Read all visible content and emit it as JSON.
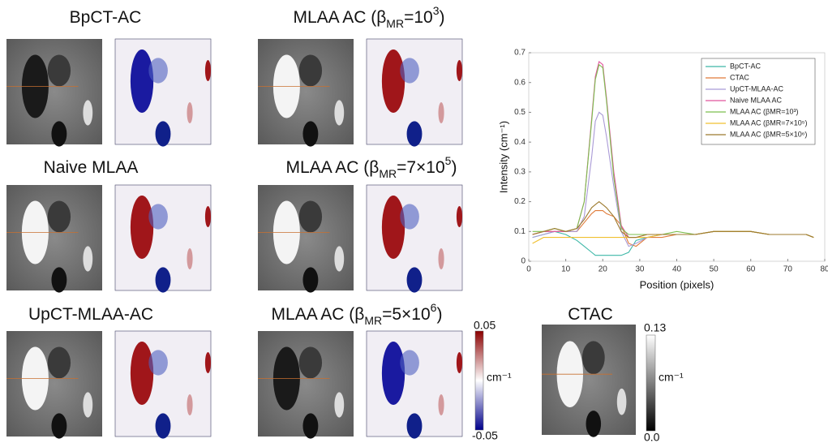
{
  "panels": [
    {
      "title": [
        "BpCT-AC"
      ]
    },
    {
      "title": [
        "MLAA AC (β",
        "MR",
        "=10",
        "3",
        ")"
      ]
    },
    {
      "title": [
        "Naive MLAA"
      ]
    },
    {
      "title": [
        "MLAA AC (β",
        "MR",
        "=7×10",
        "5",
        ")"
      ]
    },
    {
      "title": [
        "UpCT-MLAA-AC"
      ]
    },
    {
      "title": [
        "MLAA AC (β",
        "MR",
        "=5×10",
        "6",
        ")"
      ]
    },
    {
      "title": [
        "CTAC"
      ]
    }
  ],
  "colorbars": [
    {
      "max": "0.05",
      "unit": "cm⁻¹",
      "min": "-0.05"
    },
    {
      "max": "0.13",
      "unit": "cm⁻¹",
      "min": "0.0"
    }
  ],
  "chart_data": {
    "type": "line",
    "x_label": "Position (pixels)",
    "y_label": "Intensity (cm⁻¹)",
    "xlim": [
      0,
      80
    ],
    "xticks": [
      0,
      10,
      20,
      30,
      40,
      50,
      60,
      70,
      80
    ],
    "ylim": [
      0,
      0.7
    ],
    "yticks": [
      0,
      0.1,
      0.2,
      0.3,
      0.4,
      0.5,
      0.6,
      0.7
    ],
    "legend": "upper right",
    "x": [
      1,
      4,
      7,
      10,
      13,
      15,
      17,
      18,
      19,
      20,
      21,
      23,
      25,
      27,
      29,
      32,
      36,
      40,
      45,
      50,
      55,
      60,
      65,
      70,
      75,
      77
    ],
    "series": [
      {
        "name": "BpCT-AC",
        "color": "#3fb8a8",
        "values": [
          0.08,
          0.09,
          0.1,
          0.09,
          0.07,
          0.05,
          0.03,
          0.02,
          0.02,
          0.02,
          0.02,
          0.02,
          0.02,
          0.03,
          0.07,
          0.08,
          0.09,
          0.09,
          0.09,
          0.1,
          0.1,
          0.1,
          0.09,
          0.09,
          0.09,
          0.08
        ]
      },
      {
        "name": "CTAC",
        "color": "#e07b39",
        "values": [
          0.09,
          0.1,
          0.1,
          0.1,
          0.1,
          0.13,
          0.16,
          0.17,
          0.17,
          0.17,
          0.16,
          0.15,
          0.12,
          0.06,
          0.05,
          0.08,
          0.08,
          0.09,
          0.09,
          0.1,
          0.1,
          0.1,
          0.09,
          0.09,
          0.09,
          0.08
        ]
      },
      {
        "name": "UpCT-MLAA-AC",
        "color": "#a99ad6",
        "values": [
          0.08,
          0.09,
          0.1,
          0.1,
          0.1,
          0.15,
          0.35,
          0.47,
          0.5,
          0.49,
          0.42,
          0.25,
          0.1,
          0.05,
          0.06,
          0.08,
          0.09,
          0.09,
          0.09,
          0.1,
          0.1,
          0.1,
          0.09,
          0.09,
          0.09,
          0.08
        ]
      },
      {
        "name": "Naive MLAA AC",
        "color": "#e0559c",
        "values": [
          0.09,
          0.1,
          0.1,
          0.1,
          0.11,
          0.2,
          0.48,
          0.62,
          0.67,
          0.66,
          0.55,
          0.3,
          0.12,
          0.08,
          0.08,
          0.09,
          0.09,
          0.09,
          0.09,
          0.1,
          0.1,
          0.1,
          0.09,
          0.09,
          0.09,
          0.08
        ]
      },
      {
        "name": "MLAA AC (βMR=10³)",
        "color": "#7cbf4e",
        "values": [
          0.1,
          0.1,
          0.11,
          0.1,
          0.11,
          0.2,
          0.47,
          0.61,
          0.66,
          0.65,
          0.54,
          0.28,
          0.11,
          0.09,
          0.09,
          0.09,
          0.09,
          0.1,
          0.09,
          0.1,
          0.1,
          0.1,
          0.09,
          0.09,
          0.09,
          0.08
        ]
      },
      {
        "name": "MLAA AC (βMR=7×10⁵)",
        "color": "#f0c030",
        "values": [
          0.06,
          0.08,
          0.08,
          0.08,
          0.08,
          0.08,
          0.08,
          0.08,
          0.08,
          0.08,
          0.08,
          0.08,
          0.08,
          0.08,
          0.08,
          0.08,
          0.09,
          0.09,
          0.09,
          0.1,
          0.1,
          0.1,
          0.09,
          0.09,
          0.09,
          0.08
        ]
      },
      {
        "name": "MLAA AC (βMR=5×10⁶)",
        "color": "#9c7a2e",
        "values": [
          0.09,
          0.1,
          0.11,
          0.1,
          0.11,
          0.14,
          0.18,
          0.19,
          0.2,
          0.19,
          0.18,
          0.15,
          0.1,
          0.08,
          0.08,
          0.09,
          0.09,
          0.09,
          0.09,
          0.1,
          0.1,
          0.1,
          0.09,
          0.09,
          0.09,
          0.08
        ]
      }
    ]
  }
}
